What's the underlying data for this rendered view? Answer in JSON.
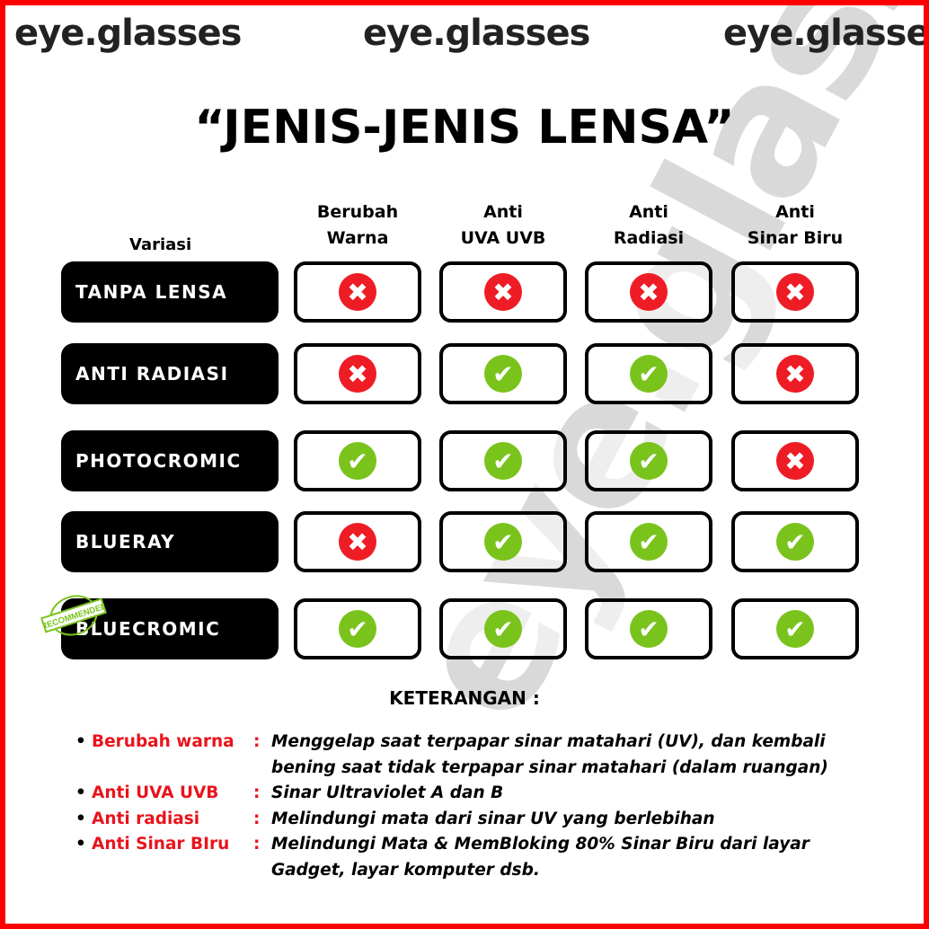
{
  "logo_text": "eye.glasses",
  "watermark_text": "eye.glasses",
  "title": "“JENIS-JENIS LENSA”",
  "variasi_label": "Variasi",
  "columns": [
    "Berubah Warna",
    "Anti UVA UVB",
    "Anti Radiasi",
    "Anti Sinar Biru"
  ],
  "column_lines": [
    [
      "Berubah",
      "Warna"
    ],
    [
      "Anti",
      "UVA UVB"
    ],
    [
      "Anti",
      "Radiasi"
    ],
    [
      "Anti",
      "Sinar Biru"
    ]
  ],
  "rows": [
    {
      "label": "TANPA LENSA",
      "values": [
        false,
        false,
        false,
        false
      ]
    },
    {
      "label": "ANTI RADIASI",
      "values": [
        false,
        true,
        true,
        false
      ]
    },
    {
      "label": "PHOTOCROMIC",
      "values": [
        true,
        true,
        true,
        false
      ]
    },
    {
      "label": "BLUERAY",
      "values": [
        false,
        true,
        true,
        true
      ]
    },
    {
      "label": "BLUECROMIC",
      "values": [
        true,
        true,
        true,
        true
      ],
      "badge": "RECOMMENDED"
    }
  ],
  "icons": {
    "yes": "check-circle-icon",
    "no": "x-circle-icon"
  },
  "colors": {
    "yes": "#7ac31d",
    "no": "#ee1c25",
    "term": "#e8141c",
    "border": "#ff0000"
  },
  "keterangan_title": "KETERANGAN :",
  "legend": [
    {
      "term": "Berubah warna",
      "desc": "Menggelap saat terpapar sinar matahari (UV), dan kembali bening saat tidak terpapar sinar matahari (dalam ruangan)"
    },
    {
      "term": "Anti UVA UVB",
      "desc": "Sinar Ultraviolet A dan B"
    },
    {
      "term": "Anti radiasi",
      "desc": "Melindungi mata dari sinar UV yang berlebihan"
    },
    {
      "term": "Anti Sinar BIru",
      "desc": "Melindungi Mata & MemBloking 80% Sinar Biru dari layar Gadget, layar komputer dsb."
    }
  ]
}
